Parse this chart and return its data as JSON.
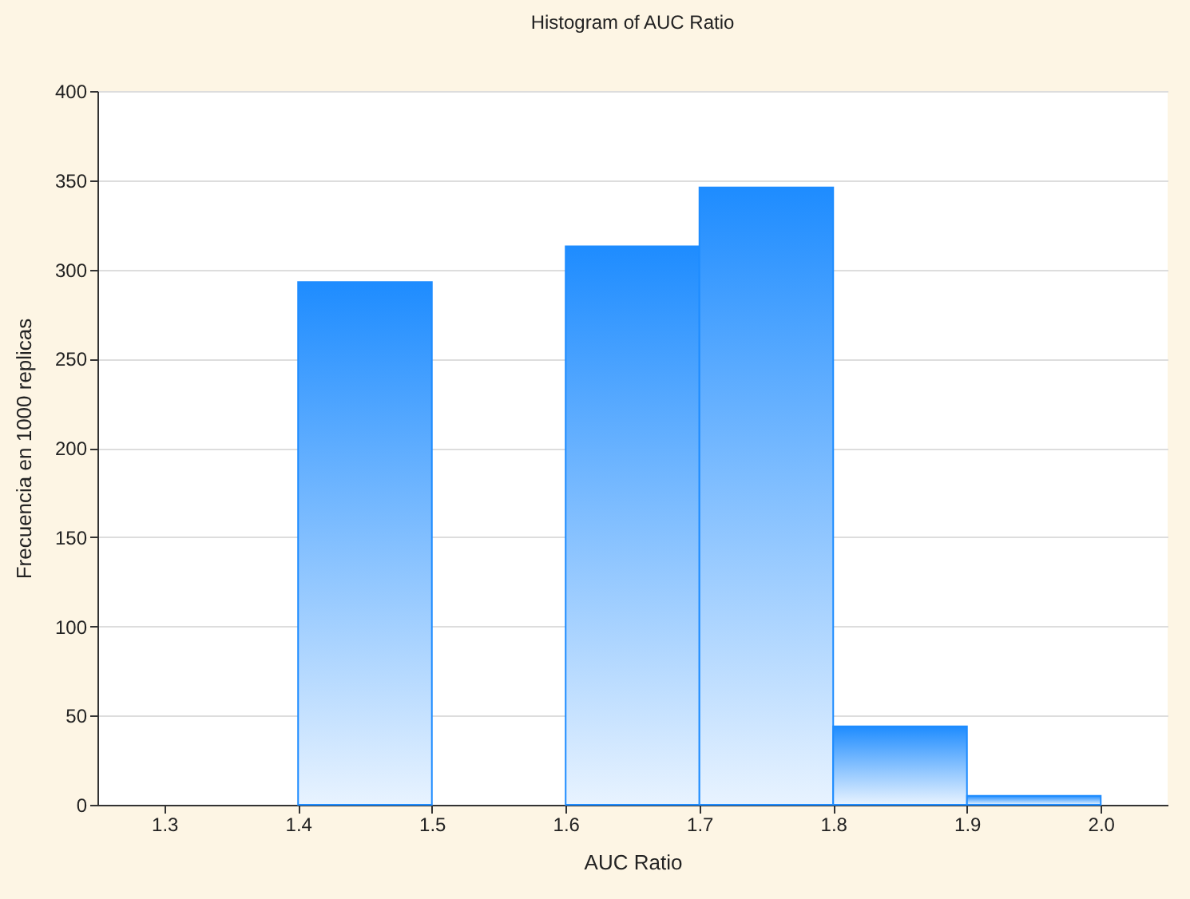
{
  "chart_data": {
    "type": "histogram",
    "title": "Histogram of AUC Ratio",
    "xlabel": "AUC Ratio",
    "ylabel": "Frecuencia en 1000 replicas",
    "bins": [
      1.4,
      1.5,
      1.6,
      1.7,
      1.8,
      1.9,
      2.0
    ],
    "values": [
      293,
      null,
      313,
      346,
      44,
      5
    ],
    "color": "#1e8cff",
    "xlim": [
      1.25,
      2.05
    ],
    "xticks": [
      1.3,
      1.4,
      1.5,
      1.6,
      1.7,
      1.8,
      1.9,
      {
        "value": 2.0,
        "label": "2.0"
      }
    ],
    "ylim": [
      0,
      400
    ],
    "yticks": [
      0,
      50,
      100,
      150,
      200,
      250,
      300,
      350,
      400
    ],
    "grid": "y"
  }
}
